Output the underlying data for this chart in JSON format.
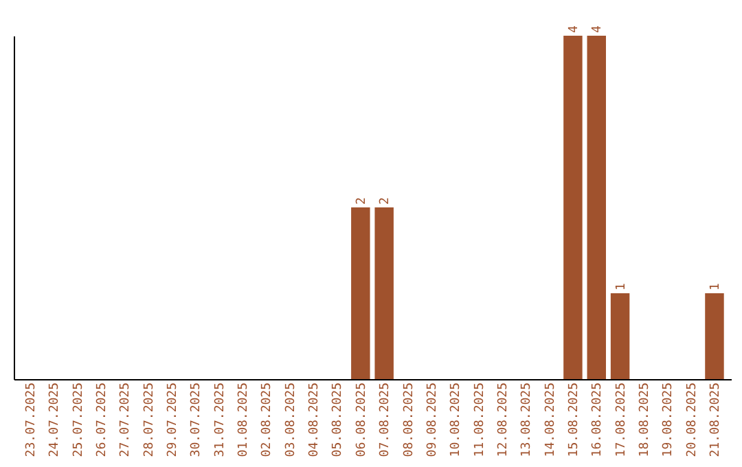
{
  "chart_data": {
    "type": "bar",
    "categories": [
      "23.07.2025",
      "24.07.2025",
      "25.07.2025",
      "26.07.2025",
      "27.07.2025",
      "28.07.2025",
      "29.07.2025",
      "30.07.2025",
      "31.07.2025",
      "01.08.2025",
      "02.08.2025",
      "03.08.2025",
      "04.08.2025",
      "05.08.2025",
      "06.08.2025",
      "07.08.2025",
      "08.08.2025",
      "09.08.2025",
      "10.08.2025",
      "11.08.2025",
      "12.08.2025",
      "13.08.2025",
      "14.08.2025",
      "15.08.2025",
      "16.08.2025",
      "17.08.2025",
      "18.08.2025",
      "19.08.2025",
      "20.08.2025",
      "21.08.2025"
    ],
    "values": [
      null,
      null,
      null,
      null,
      null,
      null,
      null,
      null,
      null,
      null,
      null,
      null,
      null,
      null,
      2,
      2,
      null,
      null,
      null,
      null,
      null,
      null,
      null,
      4,
      4,
      1,
      null,
      null,
      null,
      1
    ],
    "data_labels": true,
    "color": "#a0522d",
    "tick_labels": "x",
    "grid": false
  }
}
